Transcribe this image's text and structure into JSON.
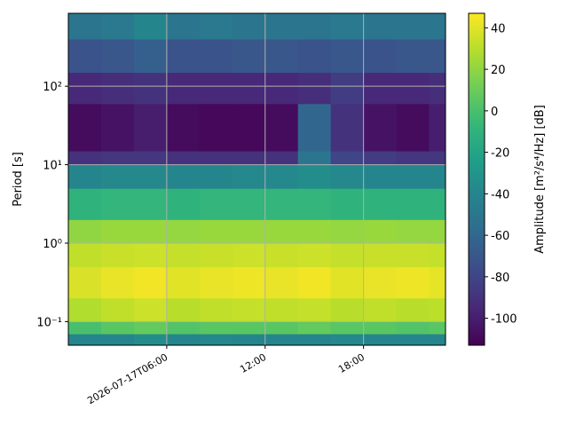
{
  "chart_data": {
    "type": "heatmap",
    "ylabel": "Period [s]",
    "colorbar_label": "Amplitude [m²/s⁴/Hz] [dB]",
    "colormap": "viridis",
    "ylog": true,
    "grid": true,
    "xlim": [
      "2026-07-17T00:00",
      "2026-07-17T23:00"
    ],
    "xticks": [
      {
        "value": "2026-07-17T06:00",
        "label": "2026-07-17T06:00"
      },
      {
        "value": "2026-07-17T12:00",
        "label": "12:00"
      },
      {
        "value": "2026-07-17T18:00",
        "label": "18:00"
      }
    ],
    "ylim": [
      0.05,
      850
    ],
    "yticks": [
      {
        "value": 0.1,
        "label": "10⁻¹"
      },
      {
        "value": 1,
        "label": "10⁰"
      },
      {
        "value": 10,
        "label": "10¹"
      },
      {
        "value": 100,
        "label": "10²"
      }
    ],
    "clim": [
      -113,
      47
    ],
    "cticks": [
      -100,
      -80,
      -60,
      -40,
      -20,
      0,
      20,
      40
    ],
    "x_edges": [
      "2026-07-17T00:00",
      "2026-07-17T02:00",
      "2026-07-17T04:00",
      "2026-07-17T06:00",
      "2026-07-17T08:00",
      "2026-07-17T10:00",
      "2026-07-17T12:00",
      "2026-07-17T14:00",
      "2026-07-17T16:00",
      "2026-07-17T18:00",
      "2026-07-17T20:00",
      "2026-07-17T22:00",
      "2026-07-17T23:00"
    ],
    "y_edges": [
      0.05,
      0.07,
      0.1,
      0.2,
      0.5,
      1,
      2,
      5,
      10,
      15,
      60,
      150,
      400,
      850
    ],
    "values": [
      [
        -40,
        -40,
        -35,
        -40,
        -38,
        -40,
        -40,
        -40,
        -38,
        -40,
        -40,
        -40
      ],
      [
        0,
        5,
        8,
        3,
        5,
        5,
        5,
        8,
        5,
        5,
        3,
        5
      ],
      [
        28,
        32,
        35,
        30,
        32,
        33,
        32,
        33,
        30,
        32,
        30,
        31
      ],
      [
        38,
        42,
        44,
        40,
        42,
        43,
        42,
        44,
        40,
        42,
        43,
        41
      ],
      [
        32,
        34,
        35,
        33,
        34,
        35,
        34,
        35,
        33,
        34,
        34,
        33
      ],
      [
        20,
        22,
        22,
        21,
        22,
        22,
        22,
        22,
        21,
        22,
        21,
        21
      ],
      [
        -10,
        -8,
        -8,
        -10,
        -8,
        -8,
        -8,
        -8,
        -10,
        -10,
        -10,
        -10
      ],
      [
        -40,
        -38,
        -38,
        -40,
        -40,
        -38,
        -38,
        -35,
        -38,
        -40,
        -40,
        -40
      ],
      [
        -90,
        -88,
        -88,
        -90,
        -90,
        -90,
        -90,
        -50,
        -80,
        -85,
        -88,
        -88
      ],
      [
        -108,
        -105,
        -100,
        -108,
        -110,
        -110,
        -108,
        -60,
        -90,
        -105,
        -108,
        -100
      ],
      [
        -95,
        -92,
        -90,
        -95,
        -95,
        -95,
        -95,
        -92,
        -85,
        -95,
        -95,
        -92
      ],
      [
        -72,
        -70,
        -65,
        -72,
        -72,
        -70,
        -70,
        -72,
        -70,
        -72,
        -70,
        -70
      ],
      [
        -50,
        -48,
        -40,
        -50,
        -48,
        -50,
        -50,
        -50,
        -48,
        -50,
        -50,
        -50
      ]
    ]
  }
}
